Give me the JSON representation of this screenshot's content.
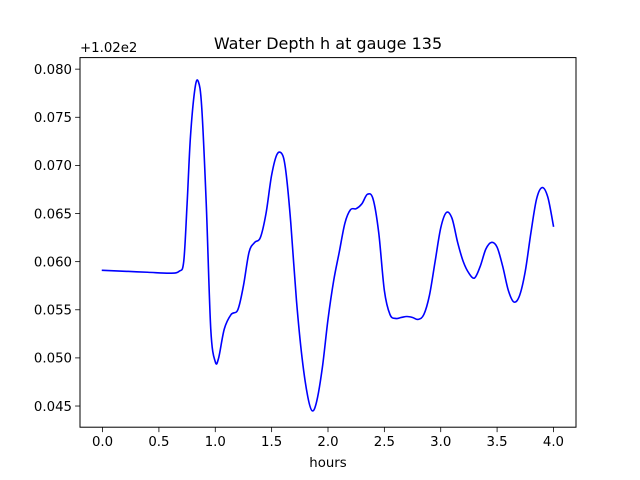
{
  "chart_data": {
    "type": "line",
    "title": "Water Depth h at gauge 135",
    "xlabel": "hours",
    "ylabel": "",
    "offset_label": "+1.02e2",
    "xlim": [
      -0.2,
      4.2
    ],
    "ylim": [
      0.0428,
      0.0812
    ],
    "x_ticks": [
      0.0,
      0.5,
      1.0,
      1.5,
      2.0,
      2.5,
      3.0,
      3.5,
      4.0
    ],
    "x_tick_labels": [
      "0.0",
      "0.5",
      "1.0",
      "1.5",
      "2.0",
      "2.5",
      "3.0",
      "3.5",
      "4.0"
    ],
    "y_ticks": [
      0.045,
      0.05,
      0.055,
      0.06,
      0.065,
      0.07,
      0.075,
      0.08
    ],
    "y_tick_labels": [
      "0.045",
      "0.050",
      "0.055",
      "0.060",
      "0.065",
      "0.070",
      "0.075",
      "0.080"
    ],
    "grid": false,
    "series": [
      {
        "color": "#0000ff",
        "x": [
          0.0,
          0.2,
          0.4,
          0.6,
          0.68,
          0.72,
          0.75,
          0.78,
          0.82,
          0.85,
          0.88,
          0.92,
          0.96,
          1.0,
          1.03,
          1.08,
          1.14,
          1.2,
          1.25,
          1.3,
          1.35,
          1.4,
          1.45,
          1.5,
          1.55,
          1.6,
          1.63,
          1.67,
          1.72,
          1.77,
          1.82,
          1.86,
          1.9,
          1.95,
          2.0,
          2.05,
          2.1,
          2.15,
          2.2,
          2.25,
          2.3,
          2.35,
          2.4,
          2.45,
          2.5,
          2.55,
          2.6,
          2.65,
          2.7,
          2.75,
          2.8,
          2.85,
          2.9,
          2.95,
          3.0,
          3.05,
          3.1,
          3.15,
          3.2,
          3.25,
          3.3,
          3.35,
          3.4,
          3.45,
          3.5,
          3.55,
          3.6,
          3.65,
          3.7,
          3.75,
          3.8,
          3.85,
          3.9,
          3.95,
          4.0
        ],
        "y": [
          0.0591,
          0.059,
          0.0589,
          0.0588,
          0.059,
          0.06,
          0.066,
          0.073,
          0.078,
          0.0787,
          0.076,
          0.066,
          0.053,
          0.0496,
          0.05,
          0.053,
          0.0545,
          0.055,
          0.0575,
          0.061,
          0.062,
          0.0625,
          0.065,
          0.069,
          0.0712,
          0.071,
          0.069,
          0.064,
          0.056,
          0.05,
          0.046,
          0.0445,
          0.0455,
          0.049,
          0.054,
          0.058,
          0.061,
          0.064,
          0.0654,
          0.0655,
          0.066,
          0.067,
          0.0665,
          0.063,
          0.057,
          0.0545,
          0.0541,
          0.0542,
          0.0543,
          0.0542,
          0.054,
          0.0545,
          0.0565,
          0.06,
          0.0635,
          0.0651,
          0.0645,
          0.062,
          0.06,
          0.0588,
          0.0583,
          0.0595,
          0.0613,
          0.062,
          0.0615,
          0.0595,
          0.057,
          0.0558,
          0.0565,
          0.059,
          0.063,
          0.0665,
          0.0677,
          0.0667,
          0.0637
        ]
      }
    ]
  }
}
